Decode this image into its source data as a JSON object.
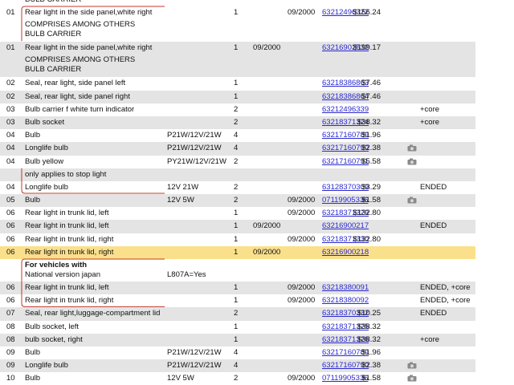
{
  "table": {
    "rows": [
      {
        "notes": [
          "BULB CARRIER"
        ],
        "bg": "#ffffff"
      },
      {
        "no": "01",
        "desc": "Rear light in the side panel,white right",
        "qty": "1",
        "to": "09/2000",
        "part": "63212496322",
        "price": "$156.24",
        "notes": [
          "COMPRISES AMONG OTHERS",
          "BULB CARRIER"
        ],
        "bg": "#ffffff"
      },
      {
        "no": "01",
        "desc": "Rear light in the side panel,white right",
        "qty": "1",
        "from": "09/2000",
        "part": "63216902532",
        "price": "$199.17",
        "notes": [
          "COMPRISES AMONG OTHERS",
          "BULB CARRIER"
        ],
        "bg": "#e4e4e4"
      },
      {
        "no": "02",
        "desc": "Seal, rear light, side panel left",
        "qty": "1",
        "part": "63218386863",
        "price": "$7.46",
        "bg": "#ffffff"
      },
      {
        "no": "02",
        "desc": "Seal, rear light, side panel right",
        "qty": "1",
        "part": "63218386864",
        "price": "$7.46",
        "bg": "#e4e4e4"
      },
      {
        "no": "03",
        "desc": "Bulb carrier f white turn indicator",
        "qty": "2",
        "part": "63212496339",
        "remark": "+core",
        "bg": "#ffffff"
      },
      {
        "no": "03",
        "desc": "Bulb socket",
        "qty": "2",
        "part": "63218371324",
        "price": "$38.32",
        "remark": "+core",
        "bg": "#e4e4e4"
      },
      {
        "no": "04",
        "desc": "Bulb",
        "supp": "P21W/12V/21W",
        "qty": "4",
        "part": "63217160789",
        "price": "$1.96",
        "bg": "#ffffff"
      },
      {
        "no": "04",
        "desc": "Longlife bulb",
        "supp": "P21W/12V/21W",
        "qty": "4",
        "part": "63217160790",
        "price": "$2.38",
        "photo": true,
        "bg": "#e4e4e4"
      },
      {
        "no": "04",
        "desc": "Bulb yellow",
        "supp": "PY21W/12V/21W",
        "qty": "2",
        "part": "63217160791",
        "price": "$5.58",
        "photo": true,
        "bg": "#ffffff"
      },
      {
        "notes": [
          "only applies to stop light"
        ],
        "bg": "#e4e4e4"
      },
      {
        "no": "04",
        "desc": "Longlife bulb",
        "supp": "12V 21W",
        "qty": "2",
        "part": "63128370309",
        "price": "$3.29",
        "remark": "ENDED",
        "bg": "#ffffff"
      },
      {
        "no": "05",
        "desc": "Bulb",
        "supp": "12V 5W",
        "qty": "2",
        "to": "09/2000",
        "part": "07119905336",
        "price": "$1.58",
        "photo": true,
        "bg": "#e4e4e4"
      },
      {
        "no": "06",
        "desc": "Rear light in trunk lid, left",
        "qty": "1",
        "to": "09/2000",
        "part": "63218371329",
        "price": "$132.80",
        "bg": "#ffffff"
      },
      {
        "no": "06",
        "desc": "Rear light in trunk lid, left",
        "qty": "1",
        "from": "09/2000",
        "part": "63216900217",
        "remark": "ENDED",
        "bg": "#e4e4e4"
      },
      {
        "no": "06",
        "desc": "Rear light in trunk lid, right",
        "qty": "1",
        "to": "09/2000",
        "part": "63218371330",
        "price": "$132.80",
        "bg": "#ffffff"
      },
      {
        "no": "06",
        "desc": "Rear light in trunk lid, right",
        "qty": "1",
        "from": "09/2000",
        "part": "63216900218",
        "bg": "#fbe08c"
      },
      {
        "heading": "For vehicles with",
        "notes": [
          "National version japan"
        ],
        "supp": "L807A=Yes",
        "bg": "#ffffff"
      },
      {
        "no": "06",
        "desc": "Rear light in trunk lid, left",
        "qty": "1",
        "to": "09/2000",
        "part": "63218380091",
        "remark": "ENDED, +core",
        "bg": "#e4e4e4"
      },
      {
        "no": "06",
        "desc": "Rear light in trunk lid, right",
        "qty": "1",
        "to": "09/2000",
        "part": "63218380092",
        "remark": "ENDED, +core",
        "bg": "#ffffff"
      },
      {
        "no": "07",
        "desc": "Seal, rear light,luggage-compartment lid",
        "qty": "2",
        "part": "63218370332",
        "price": "$10.25",
        "remark": "ENDED",
        "bg": "#e4e4e4"
      },
      {
        "no": "08",
        "desc": "Bulb socket, left",
        "qty": "1",
        "part": "63218371325",
        "price": "$38.32",
        "bg": "#ffffff"
      },
      {
        "no": "08",
        "desc": "bulb socket, right",
        "qty": "1",
        "part": "63218371326",
        "price": "$38.32",
        "remark": "+core",
        "bg": "#e4e4e4"
      },
      {
        "no": "09",
        "desc": "Bulb",
        "supp": "P21W/12V/21W",
        "qty": "4",
        "part": "63217160789",
        "price": "$1.96",
        "bg": "#ffffff"
      },
      {
        "no": "09",
        "desc": "Longlife bulb",
        "supp": "P21W/12V/21W",
        "qty": "4",
        "part": "63217160790",
        "price": "$2.38",
        "photo": true,
        "bg": "#e4e4e4"
      },
      {
        "no": "10",
        "desc": "Bulb",
        "supp": "12V 5W",
        "qty": "2",
        "to": "09/2000",
        "part": "07119905336",
        "price": "$1.58",
        "photo": true,
        "bg": "#ffffff"
      }
    ]
  }
}
